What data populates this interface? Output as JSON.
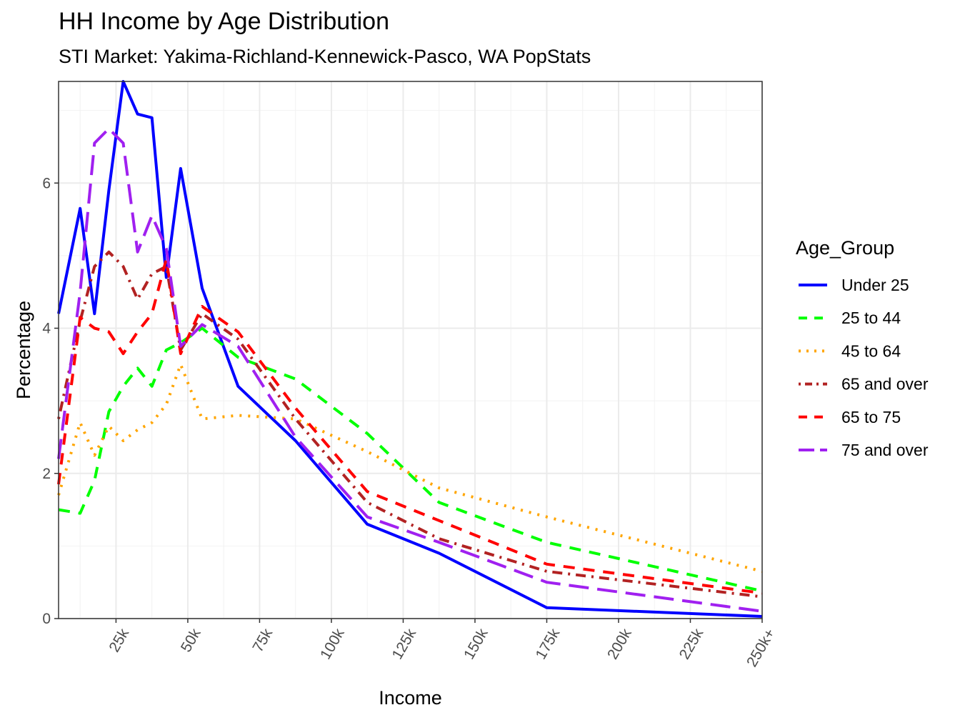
{
  "chart_data": {
    "type": "line",
    "title": "HH Income by Age Distribution",
    "subtitle": "STI Market: Yakima-Richland-Kennewick-Pasco, WA PopStats",
    "xlabel": "Income",
    "ylabel": "Percentage",
    "xlim": [
      5,
      250
    ],
    "ylim": [
      0,
      7.4
    ],
    "x_ticks": [
      25,
      50,
      75,
      100,
      125,
      150,
      175,
      200,
      225,
      250
    ],
    "x_tick_labels": [
      "25k",
      "50k",
      "75k",
      "100k",
      "125k",
      "150k",
      "175k",
      "200k",
      "225k",
      "250k+"
    ],
    "y_ticks": [
      0,
      2,
      4,
      6
    ],
    "y_tick_labels": [
      "0",
      "2",
      "4",
      "6"
    ],
    "grid": true,
    "legend": {
      "title": "Age_Group",
      "position": "right"
    },
    "x": [
      5,
      12.5,
      17.5,
      22.5,
      27.5,
      32.5,
      37.5,
      42.5,
      47.5,
      55,
      67.5,
      87.5,
      112.5,
      137.5,
      175,
      250
    ],
    "series": [
      {
        "name": "Under 25",
        "color": "#0000FF",
        "dash": "solid",
        "values": [
          4.2,
          5.65,
          4.2,
          5.9,
          7.4,
          6.95,
          6.9,
          4.7,
          6.2,
          4.55,
          3.2,
          2.45,
          1.3,
          0.9,
          0.15,
          0.03
        ]
      },
      {
        "name": "25 to 44",
        "color": "#00FF00",
        "dash": "dashed",
        "values": [
          1.5,
          1.45,
          1.9,
          2.85,
          3.2,
          3.45,
          3.2,
          3.7,
          3.8,
          4.0,
          3.6,
          3.3,
          2.55,
          1.6,
          1.05,
          0.38
        ]
      },
      {
        "name": "45 to 64",
        "color": "#FFA500",
        "dash": "dotted",
        "values": [
          1.7,
          2.7,
          2.25,
          2.65,
          2.45,
          2.6,
          2.7,
          2.95,
          3.5,
          2.75,
          2.8,
          2.75,
          2.3,
          1.8,
          1.4,
          0.65
        ]
      },
      {
        "name": "65 and over",
        "color": "#B22222",
        "dash": "dotdash",
        "values": [
          2.75,
          4.1,
          4.85,
          5.05,
          4.85,
          4.4,
          4.75,
          4.85,
          3.7,
          4.2,
          3.85,
          2.75,
          1.6,
          1.1,
          0.65,
          0.3
        ]
      },
      {
        "name": "65 to 75",
        "color": "#FF0000",
        "dash": "dashed",
        "values": [
          1.85,
          4.15,
          4.0,
          3.95,
          3.65,
          3.95,
          4.2,
          4.95,
          3.65,
          4.3,
          3.95,
          2.9,
          1.75,
          1.35,
          0.75,
          0.35
        ]
      },
      {
        "name": "75 and over",
        "color": "#A020F0",
        "dash": "longdash",
        "values": [
          2.2,
          4.5,
          6.55,
          6.75,
          6.55,
          5.05,
          5.55,
          5.1,
          3.75,
          4.05,
          3.75,
          2.5,
          1.4,
          1.05,
          0.5,
          0.1
        ]
      }
    ]
  }
}
